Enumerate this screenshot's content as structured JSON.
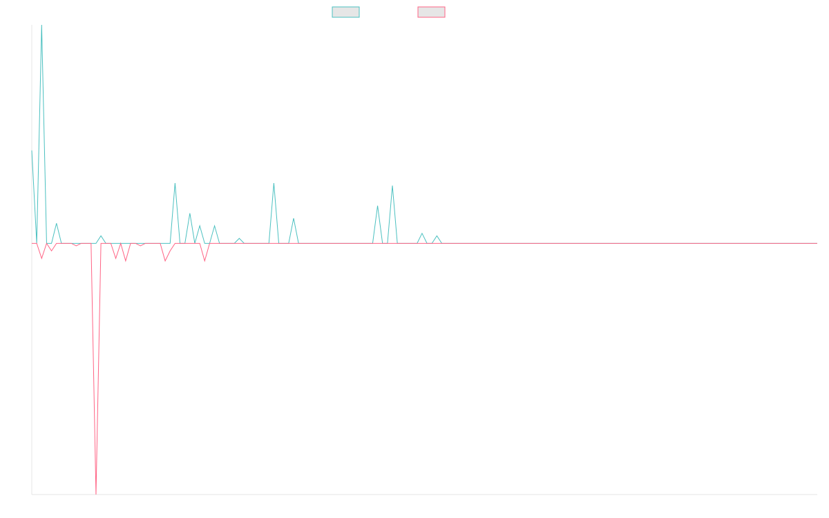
{
  "chart_data": {
    "type": "line",
    "title": "",
    "xlabel": "",
    "ylabel": "",
    "legend_position": "top-center",
    "grid": false,
    "ylim": [
      -100,
      87
    ],
    "x": [
      0,
      1,
      2,
      3,
      4,
      5,
      6,
      7,
      8,
      9,
      10,
      11,
      12,
      13,
      14,
      15,
      16,
      17,
      18,
      19,
      20,
      21,
      22,
      23,
      24,
      25,
      26,
      27,
      28,
      29,
      30,
      31,
      32,
      33,
      34,
      35,
      36,
      37,
      38,
      39,
      40,
      41,
      42,
      43,
      44,
      45,
      46,
      47,
      48,
      49,
      50,
      51,
      52,
      53,
      54,
      55,
      56,
      57,
      58,
      59,
      60,
      61,
      62,
      63,
      64,
      65,
      66,
      67,
      68,
      69,
      70,
      71,
      72,
      73,
      74,
      75,
      76,
      77,
      78,
      79,
      80,
      81,
      82,
      83,
      84,
      85,
      86,
      87,
      88,
      89,
      90,
      91,
      92,
      93,
      94,
      95,
      96,
      97,
      98,
      99,
      100,
      101,
      102,
      103,
      104,
      105,
      106,
      107,
      108,
      109,
      110,
      111,
      112,
      113,
      114,
      115,
      116,
      117,
      118,
      119,
      120,
      121,
      122,
      123,
      124,
      125,
      126,
      127,
      128,
      129,
      130,
      131,
      132,
      133,
      134,
      135,
      136,
      137,
      138,
      139,
      140,
      141,
      142,
      143,
      144,
      145,
      146,
      147,
      148,
      149,
      150,
      151,
      152,
      153,
      154,
      155,
      156,
      157,
      158,
      159
    ],
    "series": [
      {
        "name": "",
        "color": "#4bc0c0",
        "fill": "#e6e6e6",
        "values": [
          37,
          0,
          87,
          0,
          0,
          8,
          0,
          0,
          0,
          0,
          0,
          0,
          0,
          0,
          3,
          0,
          0,
          0,
          0,
          0,
          0,
          0,
          0,
          0,
          0,
          0,
          0,
          0,
          0,
          24,
          0,
          0,
          12,
          0,
          7,
          0,
          0,
          7,
          0,
          0,
          0,
          0,
          2,
          0,
          0,
          0,
          0,
          0,
          0,
          24,
          0,
          0,
          0,
          10,
          0,
          0,
          0,
          0,
          0,
          0,
          0,
          0,
          0,
          0,
          0,
          0,
          0,
          0,
          0,
          0,
          15,
          0,
          0,
          23,
          0,
          0,
          0,
          0,
          0,
          4,
          0,
          0,
          3,
          0,
          0,
          0,
          0,
          0,
          0,
          0,
          0,
          0,
          0,
          0,
          0,
          0,
          0,
          0,
          0,
          0,
          0,
          0,
          0,
          0,
          0,
          0,
          0,
          0,
          0,
          0,
          0,
          0,
          0,
          0,
          0,
          0,
          0,
          0,
          0,
          0,
          0,
          0,
          0,
          0,
          0,
          0,
          0,
          0,
          0,
          0,
          0,
          0,
          0,
          0,
          0,
          0,
          0,
          0,
          0,
          0,
          0,
          0,
          0,
          0,
          0,
          0,
          0,
          0,
          0,
          0,
          0,
          0,
          0,
          0,
          0,
          0,
          0,
          0,
          0,
          0
        ]
      },
      {
        "name": "",
        "color": "#ff6384",
        "fill": "#e6e6e6",
        "values": [
          0,
          0,
          -6,
          0,
          -3,
          0,
          0,
          0,
          0,
          -1,
          0,
          0,
          0,
          -100,
          0,
          0,
          0,
          -6,
          0,
          -7,
          0,
          0,
          -1,
          0,
          0,
          0,
          0,
          -7,
          -3,
          0,
          0,
          0,
          0,
          0,
          0,
          -7,
          0,
          0,
          0,
          0,
          0,
          0,
          0,
          0,
          0,
          0,
          0,
          0,
          0,
          0,
          0,
          0,
          0,
          0,
          0,
          0,
          0,
          0,
          0,
          0,
          0,
          0,
          0,
          0,
          0,
          0,
          0,
          0,
          0,
          0,
          0,
          0,
          0,
          0,
          0,
          0,
          0,
          0,
          0,
          0,
          0,
          0,
          0,
          0,
          0,
          0,
          0,
          0,
          0,
          0,
          0,
          0,
          0,
          0,
          0,
          0,
          0,
          0,
          0,
          0,
          0,
          0,
          0,
          0,
          0,
          0,
          0,
          0,
          0,
          0,
          0,
          0,
          0,
          0,
          0,
          0,
          0,
          0,
          0,
          0,
          0,
          0,
          0,
          0,
          0,
          0,
          0,
          0,
          0,
          0,
          0,
          0,
          0,
          0,
          0,
          0,
          0,
          0,
          0,
          0,
          0,
          0,
          0,
          0,
          0,
          0,
          0,
          0,
          0,
          0,
          0,
          0,
          0,
          0,
          0,
          0,
          0,
          0,
          0,
          0
        ]
      }
    ]
  }
}
